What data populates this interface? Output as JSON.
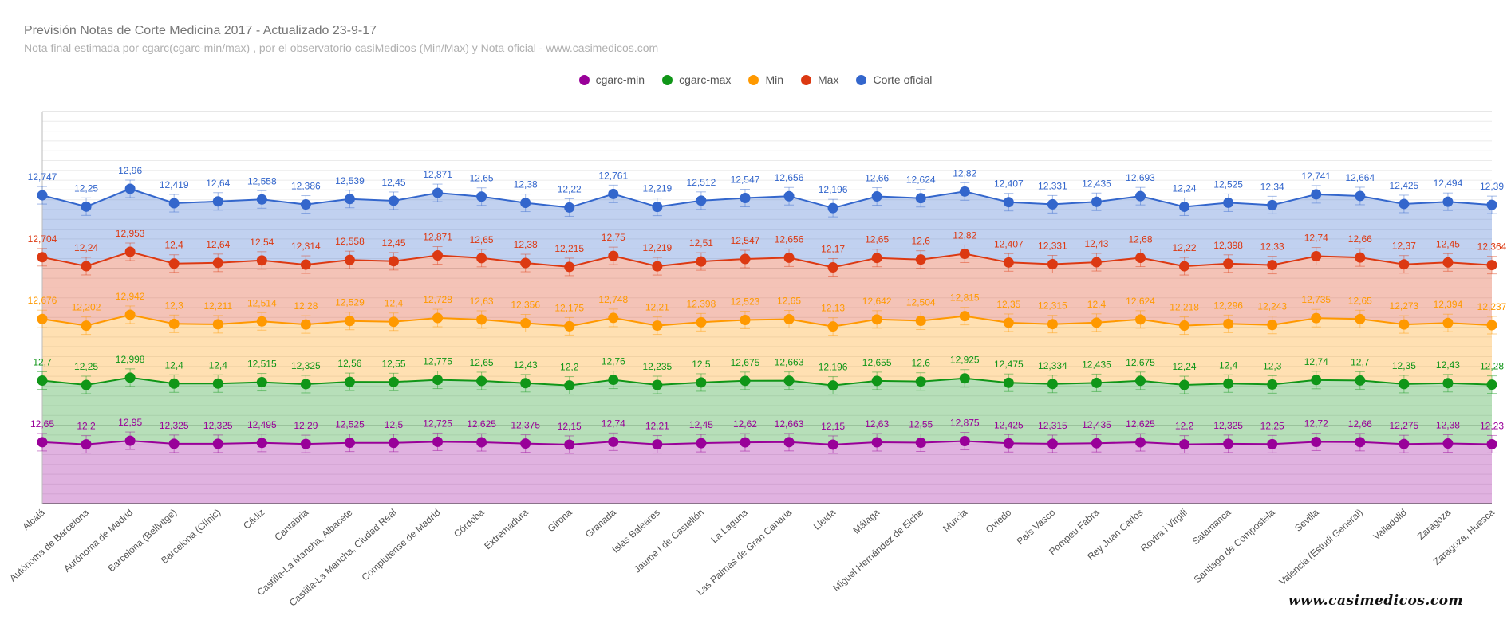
{
  "header": {
    "title": "Previsión Notas de Corte Medicina 2017 - Actualizado 23-9-17",
    "subtitle": "Nota final estimada por cgarc(cgarc-min/max) , por el observatorio casiMedicos (Min/Max) y Nota oficial  - www.casimedicos.com"
  },
  "watermark": "www.casimedicos.com",
  "chart_data": {
    "type": "area",
    "stacked": true,
    "grid": true,
    "legend_position": "top",
    "categories": [
      "Alcalá",
      "Autónoma de Barcelona",
      "Autónoma de Madrid",
      "Barcelona (Bellvitge)",
      "Barcelona (Clínic)",
      "Cádiz",
      "Cantabria",
      "Castilla-La Mancha, Albacete",
      "Castilla-La Mancha, Ciudad Real",
      "Complutense de Madrid",
      "Córdoba",
      "Extremadura",
      "Girona",
      "Granada",
      "Islas Baleares",
      "Jaume I de Castellón",
      "La Laguna",
      "Las Palmas de Gran Canaria",
      "Lleida",
      "Málaga",
      "Miguel Hernández de Elche",
      "Murcia",
      "Oviedo",
      "País Vasco",
      "Pompeu Fabra",
      "Rey Juan Carlos",
      "Rovira i Virgili",
      "Salamanca",
      "Santiago de Compostela",
      "Sevilla",
      "Valencia (Estudi General)",
      "Valladolid",
      "Zaragoza",
      "Zaragoza, Huesca"
    ],
    "series": [
      {
        "name": "cgarc-min",
        "color": "#990099",
        "values": [
          12.65,
          12.2,
          12.95,
          12.325,
          12.325,
          12.495,
          12.29,
          12.525,
          12.5,
          12.725,
          12.625,
          12.375,
          12.15,
          12.74,
          12.21,
          12.45,
          12.62,
          12.663,
          12.15,
          12.63,
          12.55,
          12.875,
          12.425,
          12.315,
          12.435,
          12.625,
          12.2,
          12.325,
          12.25,
          12.72,
          12.66,
          12.275,
          12.38,
          12.23
        ],
        "labels": [
          "12,65",
          "12,2",
          "12,95",
          "12,325",
          "12,325",
          "12,495",
          "12,29",
          "12,525",
          "12,5",
          "12,725",
          "12,625",
          "12,375",
          "12,15",
          "12,74",
          "12,21",
          "12,45",
          "12,62",
          "12,663",
          "12,15",
          "12,63",
          "12,55",
          "12,875",
          "12,425",
          "12,315",
          "12,435",
          "12,625",
          "12,2",
          "12,325",
          "12,25",
          "12,72",
          "12,66",
          "12,275",
          "12,38",
          "12,23"
        ]
      },
      {
        "name": "cgarc-max",
        "color": "#109618",
        "values": [
          12.7,
          12.25,
          12.998,
          12.4,
          12.4,
          12.515,
          12.325,
          12.56,
          12.55,
          12.775,
          12.65,
          12.43,
          12.2,
          12.76,
          12.235,
          12.5,
          12.675,
          12.663,
          12.196,
          12.655,
          12.6,
          12.925,
          12.475,
          12.334,
          12.435,
          12.675,
          12.24,
          12.4,
          12.3,
          12.74,
          12.7,
          12.35,
          12.43,
          12.28
        ],
        "labels": [
          "12,7",
          "12,25",
          "12,998",
          "12,4",
          "12,4",
          "12,515",
          "12,325",
          "12,56",
          "12,55",
          "12,775",
          "12,65",
          "12,43",
          "12,2",
          "12,76",
          "12,235",
          "12,5",
          "12,675",
          "12,663",
          "12,196",
          "12,655",
          "12,6",
          "12,925",
          "12,475",
          "12,334",
          "12,435",
          "12,675",
          "12,24",
          "12,4",
          "12,3",
          "12,74",
          "12,7",
          "12,35",
          "12,43",
          "12,28"
        ]
      },
      {
        "name": "Min",
        "color": "#ff9900",
        "values": [
          12.676,
          12.202,
          12.942,
          12.3,
          12.211,
          12.514,
          12.28,
          12.529,
          12.4,
          12.728,
          12.63,
          12.356,
          12.175,
          12.748,
          12.21,
          12.398,
          12.523,
          12.65,
          12.13,
          12.642,
          12.504,
          12.815,
          12.35,
          12.315,
          12.4,
          12.624,
          12.218,
          12.296,
          12.243,
          12.735,
          12.65,
          12.273,
          12.394,
          12.237
        ],
        "labels": [
          "12,676",
          "12,202",
          "12,942",
          "12,3",
          "12,211",
          "12,514",
          "12,28",
          "12,529",
          "12,4",
          "12,728",
          "12,63",
          "12,356",
          "12,175",
          "12,748",
          "12,21",
          "12,398",
          "12,523",
          "12,65",
          "12,13",
          "12,642",
          "12,504",
          "12,815",
          "12,35",
          "12,315",
          "12,4",
          "12,624",
          "12,218",
          "12,296",
          "12,243",
          "12,735",
          "12,65",
          "12,273",
          "12,394",
          "12,237"
        ]
      },
      {
        "name": "Max",
        "color": "#dc3912",
        "values": [
          12.704,
          12.24,
          12.953,
          12.4,
          12.64,
          12.54,
          12.314,
          12.558,
          12.45,
          12.871,
          12.65,
          12.38,
          12.215,
          12.75,
          12.219,
          12.51,
          12.547,
          12.656,
          12.17,
          12.65,
          12.6,
          12.82,
          12.407,
          12.331,
          12.43,
          12.68,
          12.22,
          12.398,
          12.33,
          12.74,
          12.66,
          12.37,
          12.45,
          12.364
        ],
        "labels": [
          "12,704",
          "12,24",
          "12,953",
          "12,4",
          "12,64",
          "12,54",
          "12,314",
          "12,558",
          "12,45",
          "12,871",
          "12,65",
          "12,38",
          "12,215",
          "12,75",
          "12,219",
          "12,51",
          "12,547",
          "12,656",
          "12,17",
          "12,65",
          "12,6",
          "12,82",
          "12,407",
          "12,331",
          "12,43",
          "12,68",
          "12,22",
          "12,398",
          "12,33",
          "12,74",
          "12,66",
          "12,37",
          "12,45",
          "12,364"
        ]
      },
      {
        "name": "Corte oficial",
        "color": "#3366cc",
        "values": [
          12.747,
          12.25,
          12.96,
          12.419,
          12.64,
          12.558,
          12.386,
          12.539,
          12.45,
          12.871,
          12.65,
          12.38,
          12.22,
          12.761,
          12.219,
          12.512,
          12.547,
          12.656,
          12.196,
          12.66,
          12.624,
          12.82,
          12.407,
          12.331,
          12.435,
          12.693,
          12.24,
          12.525,
          12.34,
          12.741,
          12.664,
          12.425,
          12.494,
          12.39
        ],
        "labels": [
          "12,747",
          "12,25",
          "12,96",
          "12,419",
          "12,64",
          "12,558",
          "12,386",
          "12,539",
          "12,45",
          "12,871",
          "12,65",
          "12,38",
          "12,22",
          "12,761",
          "12,219",
          "12,512",
          "12,547",
          "12,656",
          "12,196",
          "12,66",
          "12,624",
          "12,82",
          "12,407",
          "12,331",
          "12,435",
          "12,693",
          "12,24",
          "12,525",
          "12,34",
          "12,741",
          "12,664",
          "12,425",
          "12,494",
          "12,39"
        ]
      }
    ]
  }
}
